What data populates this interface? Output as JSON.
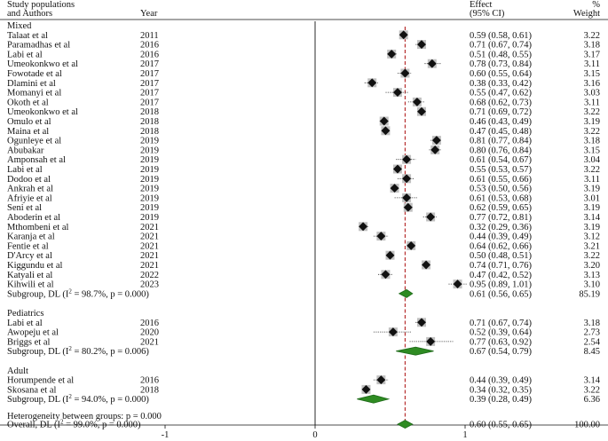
{
  "chart_data": {
    "type": "forest",
    "header": {
      "study_col": [
        "Study populations",
        "and Authors"
      ],
      "year_col": "Year",
      "effect_col": [
        "Effect",
        "(95% CI)"
      ],
      "weight_col": [
        "%",
        "Weight"
      ]
    },
    "groups": [
      {
        "name": "Mixed",
        "studies": [
          {
            "study": "Talaat et al",
            "year": "2011",
            "effect": 0.59,
            "lo": 0.58,
            "hi": 0.61,
            "ci_text": "0.59 (0.58, 0.61)",
            "weight": "3.22"
          },
          {
            "study": "Paramadhas  et al",
            "year": "2016",
            "effect": 0.71,
            "lo": 0.67,
            "hi": 0.74,
            "ci_text": "0.71 (0.67, 0.74)",
            "weight": "3.18"
          },
          {
            "study": "Labi et al",
            "year": "2016",
            "effect": 0.51,
            "lo": 0.48,
            "hi": 0.55,
            "ci_text": "0.51 (0.48, 0.55)",
            "weight": "3.17"
          },
          {
            "study": "Umeokonkwo et al",
            "year": "2017",
            "effect": 0.78,
            "lo": 0.73,
            "hi": 0.84,
            "ci_text": "0.78 (0.73, 0.84)",
            "weight": "3.11"
          },
          {
            "study": "Fowotade et al",
            "year": "2017",
            "effect": 0.6,
            "lo": 0.55,
            "hi": 0.64,
            "ci_text": "0.60 (0.55, 0.64)",
            "weight": "3.15"
          },
          {
            "study": "Dlamini  et al",
            "year": "2017",
            "effect": 0.38,
            "lo": 0.33,
            "hi": 0.42,
            "ci_text": "0.38 (0.33, 0.42)",
            "weight": "3.16"
          },
          {
            "study": "Momanyi et al",
            "year": "2017",
            "effect": 0.55,
            "lo": 0.47,
            "hi": 0.62,
            "ci_text": "0.55 (0.47, 0.62)",
            "weight": "3.03"
          },
          {
            "study": "Okoth et al",
            "year": "2017",
            "effect": 0.68,
            "lo": 0.62,
            "hi": 0.73,
            "ci_text": "0.68 (0.62, 0.73)",
            "weight": "3.11"
          },
          {
            "study": "Umeokonkwo et al",
            "year": "2018",
            "effect": 0.71,
            "lo": 0.69,
            "hi": 0.72,
            "ci_text": "0.71 (0.69, 0.72)",
            "weight": "3.22"
          },
          {
            "study": "Omulo et al",
            "year": "2018",
            "effect": 0.46,
            "lo": 0.43,
            "hi": 0.49,
            "ci_text": "0.46 (0.43, 0.49)",
            "weight": "3.19"
          },
          {
            "study": "Maina et al",
            "year": "2018",
            "effect": 0.47,
            "lo": 0.45,
            "hi": 0.48,
            "ci_text": "0.47 (0.45, 0.48)",
            "weight": "3.22"
          },
          {
            "study": "Ogunleye et al",
            "year": "2019",
            "effect": 0.81,
            "lo": 0.77,
            "hi": 0.84,
            "ci_text": "0.81 (0.77, 0.84)",
            "weight": "3.18"
          },
          {
            "study": "Abubakar",
            "year": "2019",
            "effect": 0.8,
            "lo": 0.76,
            "hi": 0.84,
            "ci_text": "0.80 (0.76, 0.84)",
            "weight": "3.15"
          },
          {
            "study": "Amponsah  et al",
            "year": "2019",
            "effect": 0.61,
            "lo": 0.54,
            "hi": 0.67,
            "ci_text": "0.61 (0.54, 0.67)",
            "weight": "3.04"
          },
          {
            "study": "Labi et al",
            "year": "2019",
            "effect": 0.55,
            "lo": 0.53,
            "hi": 0.57,
            "ci_text": "0.55 (0.53, 0.57)",
            "weight": "3.22"
          },
          {
            "study": "Dodoo et al",
            "year": "2019",
            "effect": 0.61,
            "lo": 0.55,
            "hi": 0.66,
            "ci_text": "0.61 (0.55, 0.66)",
            "weight": "3.11"
          },
          {
            "study": "Ankrah et al",
            "year": "2019",
            "effect": 0.53,
            "lo": 0.5,
            "hi": 0.56,
            "ci_text": "0.53 (0.50, 0.56)",
            "weight": "3.19"
          },
          {
            "study": "Afriyie et al",
            "year": "2019",
            "effect": 0.61,
            "lo": 0.53,
            "hi": 0.68,
            "ci_text": "0.61 (0.53, 0.68)",
            "weight": "3.01"
          },
          {
            "study": "Seni et al",
            "year": "2019",
            "effect": 0.62,
            "lo": 0.59,
            "hi": 0.65,
            "ci_text": "0.62 (0.59, 0.65)",
            "weight": "3.19"
          },
          {
            "study": "Aboderin et al",
            "year": "2019",
            "effect": 0.77,
            "lo": 0.72,
            "hi": 0.81,
            "ci_text": "0.77 (0.72, 0.81)",
            "weight": "3.14"
          },
          {
            "study": "Mthombeni et al",
            "year": "2021",
            "effect": 0.32,
            "lo": 0.29,
            "hi": 0.36,
            "ci_text": "0.32 (0.29, 0.36)",
            "weight": "3.19"
          },
          {
            "study": "Karanja  et al",
            "year": "2021",
            "effect": 0.44,
            "lo": 0.39,
            "hi": 0.49,
            "ci_text": "0.44 (0.39, 0.49)",
            "weight": "3.12"
          },
          {
            "study": "Fentie et al",
            "year": "2021",
            "effect": 0.64,
            "lo": 0.62,
            "hi": 0.66,
            "ci_text": "0.64 (0.62, 0.66)",
            "weight": "3.21"
          },
          {
            "study": "D'Arcy et al",
            "year": "2021",
            "effect": 0.5,
            "lo": 0.48,
            "hi": 0.51,
            "ci_text": "0.50 (0.48, 0.51)",
            "weight": "3.22"
          },
          {
            "study": "Kiggundu et al",
            "year": "2021",
            "effect": 0.74,
            "lo": 0.71,
            "hi": 0.76,
            "ci_text": "0.74 (0.71, 0.76)",
            "weight": "3.20"
          },
          {
            "study": "Katyali et al",
            "year": "2022",
            "effect": 0.47,
            "lo": 0.42,
            "hi": 0.52,
            "ci_text": "0.47 (0.42, 0.52)",
            "weight": "3.13"
          },
          {
            "study": "Kihwili et al",
            "year": "2023",
            "effect": 0.95,
            "lo": 0.89,
            "hi": 1.01,
            "ci_text": "0.95 (0.89, 1.01)",
            "weight": "3.10"
          }
        ],
        "subgroup": {
          "label_pre": "Subgroup, DL (I",
          "label_post": " = 98.7%, p = 0.000)",
          "effect": 0.61,
          "lo": 0.56,
          "hi": 0.65,
          "ci_text": "0.61 (0.56, 0.65)",
          "weight": "85.19"
        }
      },
      {
        "name": "Pediatrics",
        "studies": [
          {
            "study": "Labi  et al",
            "year": "2016",
            "effect": 0.71,
            "lo": 0.67,
            "hi": 0.74,
            "ci_text": "0.71 (0.67, 0.74)",
            "weight": "3.18"
          },
          {
            "study": "Awopeju et al",
            "year": "2020",
            "effect": 0.52,
            "lo": 0.39,
            "hi": 0.64,
            "ci_text": "0.52 (0.39, 0.64)",
            "weight": "2.73"
          },
          {
            "study": "Briggs et al",
            "year": "2021",
            "effect": 0.77,
            "lo": 0.63,
            "hi": 0.92,
            "ci_text": "0.77 (0.63, 0.92)",
            "weight": "2.54"
          }
        ],
        "subgroup": {
          "label_pre": "Subgroup, DL (I",
          "label_post": " = 80.2%, p = 0.006)",
          "effect": 0.67,
          "lo": 0.54,
          "hi": 0.79,
          "ci_text": "0.67 (0.54, 0.79)",
          "weight": "8.45"
        }
      },
      {
        "name": "Adult",
        "studies": [
          {
            "study": "Horumpende et al",
            "year": "2016",
            "effect": 0.44,
            "lo": 0.39,
            "hi": 0.49,
            "ci_text": "0.44 (0.39, 0.49)",
            "weight": "3.14"
          },
          {
            "study": "Skosana et al",
            "year": "2018",
            "effect": 0.34,
            "lo": 0.32,
            "hi": 0.35,
            "ci_text": "0.34 (0.32, 0.35)",
            "weight": "3.22"
          }
        ],
        "subgroup": {
          "label_pre": "Subgroup, DL (I",
          "label_post": " = 94.0%, p = 0.000)",
          "effect": 0.39,
          "lo": 0.28,
          "hi": 0.49,
          "ci_text": "0.39 (0.28, 0.49)",
          "weight": "6.36"
        }
      }
    ],
    "heterogeneity": "Heterogeneity between groups: p = 0.000",
    "overall": {
      "label_pre": "Overall, DL (I",
      "label_post": " = 99.0%, p = 0.000)",
      "effect": 0.6,
      "lo": 0.55,
      "hi": 0.65,
      "ci_text": "0.60 (0.55, 0.65)",
      "weight": "100.00"
    },
    "x_ticks": [
      "-1",
      "0",
      "1"
    ],
    "xlim": [
      -1.05,
      1.05
    ],
    "null_line": 0,
    "overall_line": 0.6,
    "colors": {
      "diamond": "#1f6b1a",
      "diamond_fill": "#2e8b22",
      "overall_line": "#b22222",
      "marker": "#111111",
      "marker_box": "#c0c0c0"
    }
  }
}
